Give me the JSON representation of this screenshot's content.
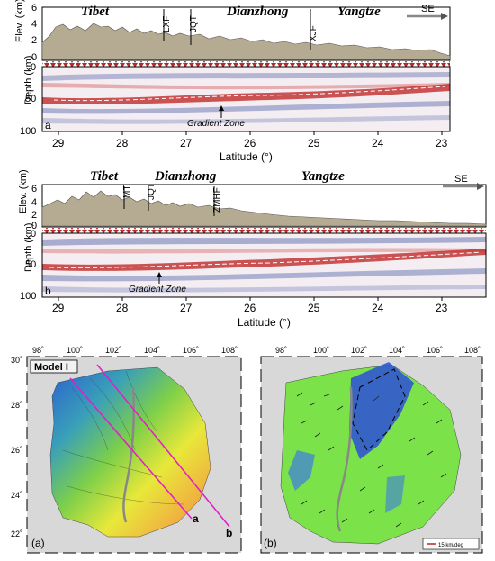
{
  "panel_a": {
    "regions": [
      "Tibet",
      "Dianzhong",
      "Yangtze"
    ],
    "faults": [
      "LXF",
      "JQT",
      "XJF"
    ],
    "direction": "SE",
    "elev_ylabel": "Elev. (km)",
    "elev_ticks": [
      "6",
      "4",
      "2",
      "0"
    ],
    "depth_ylabel": "Depth (km)",
    "depth_ticks": [
      "0",
      "50",
      "100"
    ],
    "panel_letter": "a",
    "gradient_label": "Gradient Zone",
    "xticks": [
      "29",
      "28",
      "27",
      "26",
      "25",
      "24",
      "23"
    ],
    "xlabel": "Latitude (°)"
  },
  "panel_b": {
    "regions": [
      "Tibet",
      "Dianzhong",
      "Yangtze"
    ],
    "faults": [
      "MT",
      "JQT",
      "ZMHF"
    ],
    "direction": "SE",
    "elev_ylabel": "Elev. (km)",
    "elev_ticks": [
      "6",
      "4",
      "2",
      "0"
    ],
    "depth_ylabel": "Depth (km)",
    "depth_ticks": [
      "0",
      "50",
      "100"
    ],
    "panel_letter": "b",
    "gradient_label": "Gradient Zone",
    "xticks": [
      "29",
      "28",
      "27",
      "26",
      "25",
      "24",
      "23"
    ],
    "xlabel": "Latitude (°)"
  },
  "map_left": {
    "title": "Model I",
    "label": "(a)",
    "lon_ticks": [
      "98˚",
      "100˚",
      "102˚",
      "104˚",
      "106˚",
      "108˚"
    ],
    "lat_ticks": [
      "30˚",
      "28˚",
      "26˚",
      "24˚",
      "22˚"
    ],
    "line_a": "a",
    "line_b": "b"
  },
  "map_right": {
    "label": "(b)",
    "lon_ticks": [
      "98˚",
      "100˚",
      "102˚",
      "104˚",
      "106˚",
      "108˚"
    ],
    "scale_label": "15 km/deg"
  }
}
